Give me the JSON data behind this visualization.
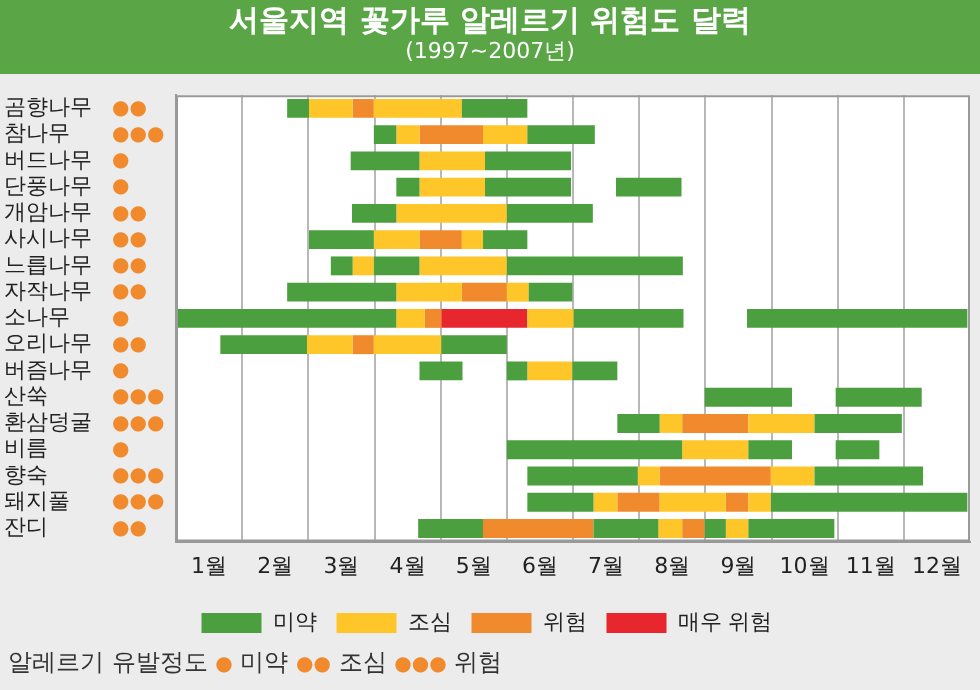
{
  "chart_data": {
    "type": "bar",
    "orientation": "horizontal",
    "title": "서울지역 꽃가루 알레르기 위험도 달력",
    "subtitle": "(1997~2007년)",
    "categories": [
      "곰향나무",
      "참나무",
      "버드나무",
      "단풍나무",
      "개암나무",
      "사시나무",
      "느릅나무",
      "자작나무",
      "소나무",
      "오리나무",
      "버즘나무",
      "산쑥",
      "환삼덩굴",
      "비름",
      "향숙",
      "돼지풀",
      "잔디"
    ],
    "xlim": [
      0.5,
      12.5
    ],
    "xticks": [
      {
        "value": 1,
        "label": "1월"
      },
      {
        "value": 1.5,
        "label": null
      },
      {
        "value": 2,
        "label": "2월"
      },
      {
        "value": 2.5,
        "label": null
      },
      {
        "value": 3,
        "label": "3월"
      },
      {
        "value": 3.5,
        "label": null
      },
      {
        "value": 4,
        "label": "4월"
      },
      {
        "value": 4.5,
        "label": null
      },
      {
        "value": 5,
        "label": "5월"
      },
      {
        "value": 5.5,
        "label": null
      },
      {
        "value": 6,
        "label": "6월"
      },
      {
        "value": 6.5,
        "label": null
      },
      {
        "value": 7,
        "label": "7월"
      },
      {
        "value": 7.5,
        "label": null
      },
      {
        "value": 8,
        "label": "8월"
      },
      {
        "value": 8.5,
        "label": null
      },
      {
        "value": 9,
        "label": "9월"
      },
      {
        "value": 9.5,
        "label": null
      },
      {
        "value": 10,
        "label": "10월"
      },
      {
        "value": 10.5,
        "label": null
      },
      {
        "value": 11,
        "label": "11월"
      },
      {
        "value": 11.5,
        "label": null
      },
      {
        "value": 12,
        "label": "12월"
      }
    ],
    "grid": "x",
    "legend": "bottom",
    "series": [
      {
        "name": "미약",
        "color": "#4c9f3e",
        "base": [
          2.18,
          3.49,
          3.14,
          3.83,
          3.16,
          2.51,
          2.84,
          2.18,
          0.5,
          1.17,
          4.18,
          8.49,
          7.17,
          5.5,
          5.81,
          5.81,
          4.16
        ],
        "values": [
          0.33,
          0.34,
          1.04,
          0.35,
          0.67,
          0.98,
          0.33,
          1.65,
          3.33,
          1.31,
          0.65,
          1.32,
          0.64,
          2.65,
          1.67,
          1.0,
          0.98
        ]
      },
      {
        "color": "#4c9f3e",
        "base": [
          4.82,
          5.81,
          5.17,
          5.17,
          5.5,
          5.14,
          3.49,
          5.83,
          6.51,
          4.51,
          5.5,
          10.47,
          10.15,
          9.15,
          10.15,
          9.49,
          6.81
        ],
        "values": [
          0.99,
          1.02,
          1.3,
          1.3,
          1.3,
          0.67,
          0.69,
          0.66,
          1.66,
          0.99,
          0.31,
          1.3,
          1.32,
          0.66,
          1.64,
          2.97,
          0.98
        ]
      },
      {
        "color": "#4c9f3e",
        "base": [
          null,
          null,
          null,
          7.15,
          null,
          null,
          5.5,
          null,
          9.13,
          null,
          6.49,
          null,
          null,
          10.47,
          null,
          null,
          8.49
        ],
        "values": [
          null,
          null,
          null,
          0.99,
          null,
          null,
          2.66,
          null,
          3.33,
          null,
          0.68,
          null,
          null,
          0.66,
          null,
          null,
          0.32
        ]
      },
      {
        "color": "#4c9f3e",
        "base": [
          null,
          null,
          null,
          null,
          null,
          null,
          null,
          null,
          null,
          null,
          null,
          null,
          null,
          null,
          null,
          null,
          9.15
        ],
        "values": [
          null,
          null,
          null,
          null,
          null,
          null,
          null,
          null,
          null,
          null,
          null,
          null,
          null,
          null,
          null,
          null,
          1.3
        ]
      },
      {
        "name": "조심",
        "color": "#ffc629",
        "base": [
          2.51,
          3.83,
          4.18,
          4.18,
          3.83,
          3.49,
          3.17,
          3.83,
          3.83,
          2.48,
          5.81,
          null,
          7.81,
          8.15,
          7.48,
          6.81,
          7.79
        ],
        "values": [
          0.66,
          0.35,
          0.99,
          0.99,
          1.67,
          0.69,
          0.32,
          0.99,
          0.43,
          0.69,
          0.68,
          null,
          0.34,
          1.0,
          0.33,
          0.36,
          0.36
        ]
      },
      {
        "color": "#ffc629",
        "base": [
          3.49,
          5.14,
          null,
          null,
          null,
          4.82,
          4.18,
          5.5,
          5.81,
          3.49,
          null,
          null,
          9.15,
          null,
          9.49,
          7.81,
          8.81
        ],
        "values": [
          1.33,
          0.67,
          null,
          null,
          null,
          0.32,
          1.32,
          0.33,
          0.7,
          1.02,
          null,
          null,
          1.0,
          null,
          0.66,
          1.0,
          0.34
        ]
      },
      {
        "color": "#ffc629",
        "base": [
          null,
          null,
          null,
          null,
          null,
          null,
          null,
          null,
          null,
          null,
          null,
          null,
          null,
          null,
          null,
          9.15,
          null
        ],
        "values": [
          null,
          null,
          null,
          null,
          null,
          null,
          null,
          null,
          null,
          null,
          null,
          null,
          null,
          null,
          null,
          0.34,
          null
        ]
      },
      {
        "name": "위험",
        "color": "#f08a2c",
        "base": [
          3.17,
          4.18,
          null,
          null,
          null,
          4.18,
          null,
          4.82,
          4.26,
          3.17,
          null,
          null,
          8.15,
          null,
          7.81,
          7.17,
          5.14
        ],
        "values": [
          0.32,
          0.96,
          null,
          null,
          null,
          0.64,
          null,
          0.68,
          0.25,
          0.32,
          null,
          null,
          1.0,
          null,
          1.68,
          0.64,
          1.67
        ]
      },
      {
        "color": "#f08a2c",
        "base": [
          null,
          null,
          null,
          null,
          null,
          null,
          null,
          null,
          null,
          null,
          null,
          null,
          null,
          null,
          null,
          8.81,
          8.15
        ],
        "values": [
          null,
          null,
          null,
          null,
          null,
          null,
          null,
          null,
          null,
          null,
          null,
          null,
          null,
          null,
          null,
          0.34,
          0.34
        ]
      },
      {
        "name": "매우 위험",
        "color": "#e8262d",
        "base": [
          null,
          null,
          null,
          null,
          null,
          null,
          null,
          null,
          4.51,
          null,
          null,
          null,
          null,
          null,
          null,
          null,
          null
        ],
        "values": [
          null,
          null,
          null,
          null,
          null,
          null,
          null,
          null,
          1.3,
          null,
          null,
          null,
          null,
          null,
          null,
          null,
          null
        ]
      }
    ],
    "annotations": [
      "●●",
      "●●●",
      "●",
      "●",
      "●●",
      "●●",
      "●●",
      "●●",
      "●",
      "●●",
      "●",
      "●●●",
      "●●●",
      "●",
      "●●●",
      "●●●",
      "●●",
      "알레르기 유발정도 ● 미약 ●● 조심 ●●● 위험"
    ]
  }
}
